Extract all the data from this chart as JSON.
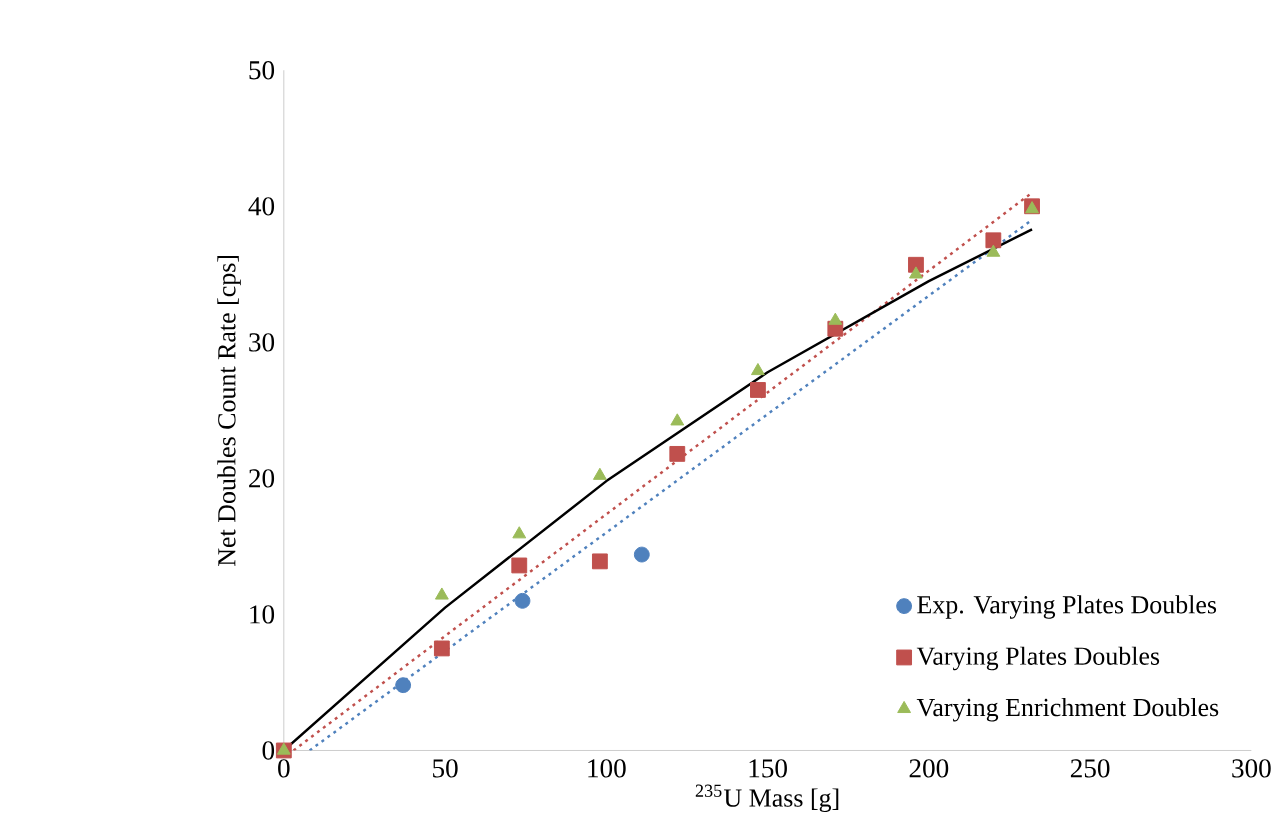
{
  "chart_data": {
    "type": "scatter",
    "xlabel": "$^{235}$U Mass [g]",
    "ylabel": "Net Doubles  Count Rate [cps]",
    "xlim": [
      0,
      300
    ],
    "ylim": [
      0,
      50
    ],
    "xticks": [
      0,
      50,
      100,
      150,
      200,
      250,
      300
    ],
    "yticks": [
      0,
      10,
      20,
      30,
      40,
      50
    ],
    "grid": false,
    "legend": "bottom right",
    "series": [
      {
        "name": "Exp. Varying Plates Doubles",
        "color": "#4f81bd",
        "marker": "circle",
        "x": [
          37,
          74,
          111
        ],
        "values": [
          4.8,
          11.0,
          14.4
        ]
      },
      {
        "name": "Varying Plates Doubles",
        "color": "#c0504d",
        "marker": "square",
        "x": [
          0,
          49,
          73,
          98,
          122,
          147,
          171,
          196,
          220,
          232
        ],
        "values": [
          0,
          7.5,
          13.6,
          13.9,
          21.8,
          26.5,
          31.0,
          35.7,
          37.5,
          40.0
        ]
      },
      {
        "name": "Varying Enrichment Doubles",
        "color": "#9bbb59",
        "marker": "triangle",
        "x": [
          0,
          49,
          73,
          98,
          122,
          147,
          171,
          196,
          220,
          232
        ],
        "values": [
          0,
          11.4,
          15.9,
          20.2,
          24.2,
          27.9,
          31.6,
          35.0,
          36.6,
          39.8
        ]
      },
      {
        "type": "line",
        "color": "#4f81bd",
        "line_style": "dotted",
        "marker": "none",
        "x": [
          8,
          232
        ],
        "values": [
          0,
          39
        ]
      },
      {
        "type": "line",
        "color": "#c0504d",
        "line_style": "dotted",
        "marker": "none",
        "x": [
          3,
          232
        ],
        "values": [
          0,
          41
        ]
      },
      {
        "type": "line",
        "color": "#000000",
        "line_style": "solid",
        "marker": "none",
        "x": [
          0,
          50,
          100,
          150,
          200,
          232
        ],
        "values": [
          0,
          10.5,
          19.8,
          27.8,
          34.5,
          38.3
        ]
      }
    ]
  }
}
